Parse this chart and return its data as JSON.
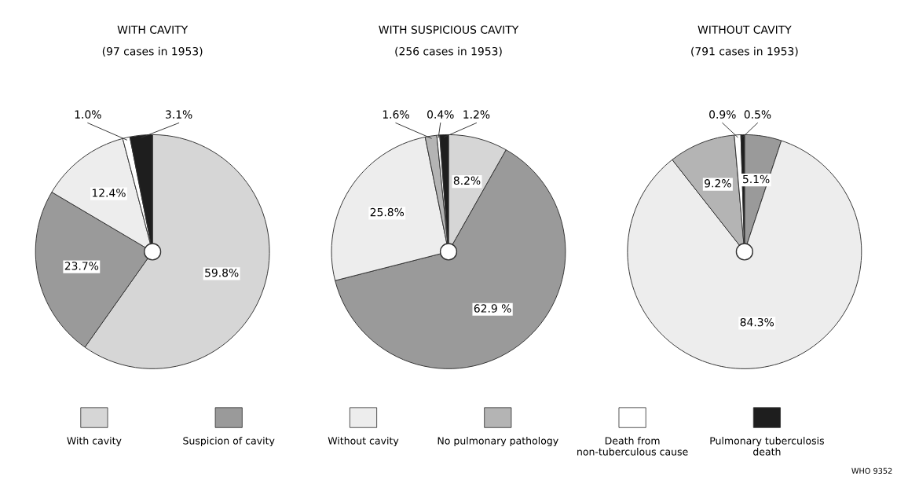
{
  "chart_data": [
    {
      "type": "pie",
      "title": "WITH CAVITY",
      "subtitle": "(97 cases in 1953)",
      "categories": [
        "With cavity",
        "Suspicion of cavity",
        "Without cavity",
        "No pulmonary pathology",
        "Death from non-tuberculous cause",
        "Pulmonary tuberculosis death"
      ],
      "values": [
        59.8,
        23.7,
        12.4,
        null,
        1.0,
        3.1
      ],
      "value_labels": [
        "59.8%",
        "23.7%",
        "12.4%",
        null,
        "1.0%",
        "3.1%"
      ],
      "colors": [
        "#d6d6d6",
        "#9a9a9a",
        "#ededed",
        "#b4b4b4",
        "#ffffff",
        "#1e1e1e"
      ],
      "legend": "bottom"
    },
    {
      "type": "pie",
      "title": "WITH SUSPICIOUS CAVITY",
      "subtitle": "(256 cases in 1953)",
      "categories": [
        null,
        null,
        null,
        null,
        null,
        null
      ],
      "values": [
        8.2,
        62.9,
        25.8,
        1.6,
        0.4,
        1.2
      ],
      "value_labels": [
        "8.2%",
        "62.9 %",
        "25.8%",
        "1.6%",
        "0.4%",
        "1.2%"
      ],
      "colors": [
        "#d6d6d6",
        "#9a9a9a",
        "#ededed",
        "#b4b4b4",
        "#ffffff",
        "#1e1e1e"
      ]
    },
    {
      "type": "pie",
      "title": "WITHOUT CAVITY",
      "subtitle": "(791 cases in 1953)",
      "categories": [
        null,
        null,
        null,
        null,
        null,
        null
      ],
      "values": [
        null,
        5.1,
        84.3,
        9.2,
        0.9,
        0.5
      ],
      "value_labels": [
        null,
        "5.1%",
        "84.3%",
        "9.2%",
        "0.9%",
        "0.5%"
      ],
      "colors": [
        "#d6d6d6",
        "#9a9a9a",
        "#ededed",
        "#b4b4b4",
        "#ffffff",
        "#1e1e1e"
      ],
      "annotations": [
        "WHO 9352"
      ]
    }
  ]
}
